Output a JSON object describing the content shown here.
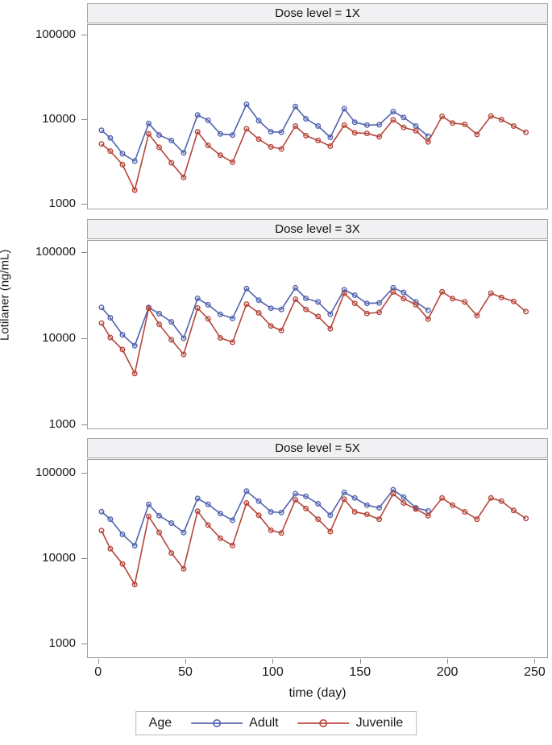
{
  "chart_data": {
    "type": "line",
    "title": "",
    "xlabel": "time (day)",
    "ylabel": "Lotilaner (ng/mL)",
    "y_scale": "log",
    "xlim": [
      -5,
      262
    ],
    "ylim": [
      900,
      130000
    ],
    "grid": false,
    "x_ticks": [
      0,
      50,
      100,
      150,
      200,
      250
    ],
    "x_tick_labels": [
      "0",
      "50",
      "100",
      "150",
      "200",
      "250"
    ],
    "y_ticks": [
      100000,
      10000,
      1000
    ],
    "y_tick_labels": [
      "100000",
      "10000",
      "1000"
    ],
    "legend": {
      "title": "Age",
      "position": "bottom",
      "entries": [
        {
          "label": "Adult",
          "color": "#5264AE"
        },
        {
          "label": "Juvenile",
          "color": "#B5473C"
        }
      ]
    },
    "panels": [
      {
        "title": "Dose level = 1X",
        "series": [
          {
            "name": "Adult",
            "color": "#5264AE",
            "days": [
              2,
              7,
              14,
              21,
              29,
              35,
              42,
              49,
              57,
              63,
              70,
              77,
              85,
              92,
              99,
              105,
              113,
              119,
              126,
              133,
              141,
              147,
              154,
              161,
              169,
              175,
              182,
              189
            ],
            "values": [
              7400,
              6000,
              3900,
              3200,
              8900,
              6500,
              5600,
              4000,
              11200,
              9700,
              6700,
              6500,
              15000,
              9600,
              7100,
              7000,
              14100,
              10100,
              8300,
              6100,
              13300,
              9200,
              8500,
              8600,
              12300,
              10500,
              8300,
              6300
            ]
          },
          {
            "name": "Juvenile",
            "color": "#B5473C",
            "days": [
              2,
              7,
              14,
              21,
              29,
              35,
              42,
              49,
              57,
              63,
              70,
              77,
              85,
              92,
              99,
              105,
              113,
              119,
              126,
              133,
              141,
              147,
              154,
              161,
              169,
              175,
              182,
              189,
              197,
              203,
              210,
              217,
              225,
              231,
              238,
              245
            ],
            "values": [
              5100,
              4200,
              2900,
              1450,
              6700,
              4650,
              3050,
              2050,
              7100,
              4900,
              3750,
              3100,
              7700,
              5800,
              4700,
              4450,
              8300,
              6400,
              5600,
              4800,
              8500,
              6900,
              6800,
              6200,
              9800,
              8000,
              7300,
              5400,
              10800,
              9000,
              8700,
              6600,
              10900,
              9900,
              8300,
              7000
            ]
          }
        ]
      },
      {
        "title": "Dose level = 3X",
        "series": [
          {
            "name": "Adult",
            "color": "#5264AE",
            "days": [
              2,
              7,
              14,
              21,
              29,
              35,
              42,
              49,
              57,
              63,
              70,
              77,
              85,
              92,
              99,
              105,
              113,
              119,
              126,
              133,
              141,
              147,
              154,
              161,
              169,
              175,
              182,
              189
            ],
            "values": [
              22800,
              17300,
              11000,
              8200,
              22800,
              19300,
              15500,
              10000,
              29000,
              24500,
              19000,
              17000,
              37700,
              27700,
              22300,
              21600,
              38500,
              29000,
              26400,
              19000,
              36600,
              31600,
              25400,
              25700,
              38500,
              34000,
              26400,
              21200
            ]
          },
          {
            "name": "Juvenile",
            "color": "#B5473C",
            "days": [
              2,
              7,
              14,
              21,
              29,
              35,
              42,
              49,
              57,
              63,
              70,
              77,
              85,
              92,
              99,
              105,
              113,
              119,
              126,
              133,
              141,
              147,
              154,
              161,
              169,
              175,
              182,
              189,
              197,
              203,
              210,
              217,
              225,
              231,
              238,
              245
            ],
            "values": [
              15000,
              10200,
              7400,
              3900,
              22300,
              14500,
              9600,
              6500,
              22400,
              16800,
              10100,
              9000,
              24900,
              19700,
              13900,
              12300,
              28400,
              21600,
              17900,
              12900,
              33300,
              25400,
              19400,
              20000,
              34500,
              28800,
              24500,
              16700,
              34700,
              28800,
              26400,
              18300,
              33300,
              29800,
              26800,
              20400
            ]
          }
        ]
      },
      {
        "title": "Dose level = 5X",
        "series": [
          {
            "name": "Adult",
            "color": "#5264AE",
            "days": [
              2,
              7,
              14,
              21,
              29,
              35,
              42,
              49,
              57,
              63,
              70,
              77,
              85,
              92,
              99,
              105,
              113,
              119,
              126,
              133,
              141,
              147,
              154,
              161,
              169,
              175,
              182,
              189
            ],
            "values": [
              35000,
              28600,
              19000,
              14000,
              42700,
              31400,
              25700,
              20000,
              50000,
              42700,
              33300,
              27800,
              61000,
              46500,
              34900,
              34200,
              56900,
              53000,
              43300,
              31800,
              58900,
              50700,
              41800,
              38900,
              63200,
              51800,
              38900,
              35700
            ]
          },
          {
            "name": "Juvenile",
            "color": "#B5473C",
            "days": [
              2,
              7,
              14,
              21,
              29,
              35,
              42,
              49,
              57,
              63,
              70,
              77,
              85,
              92,
              99,
              105,
              113,
              119,
              126,
              133,
              141,
              147,
              154,
              161,
              169,
              175,
              182,
              189,
              197,
              203,
              210,
              217,
              225,
              231,
              238,
              245
            ],
            "values": [
              21000,
              12900,
              8550,
              4900,
              30800,
              20000,
              11500,
              7500,
              35500,
              24400,
              17100,
              14100,
              44300,
              31800,
              21200,
              19700,
              48200,
              38100,
              28600,
              20500,
              48900,
              34900,
              32500,
              28600,
              56900,
              44300,
              37600,
              31400,
              50700,
              41800,
              34900,
              28600,
              50700,
              46500,
              36200,
              29200
            ]
          }
        ]
      }
    ]
  }
}
